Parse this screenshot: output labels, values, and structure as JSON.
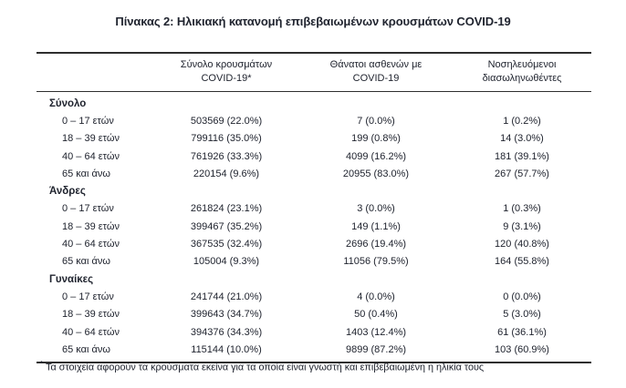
{
  "title": "Πίνακας 2: Ηλικιακή κατανομή επιβεβαιωμένων κρουσμάτων COVID-19",
  "table": {
    "columns": [
      {
        "line1": "Σύνολο κρουσμάτων",
        "line2": "COVID-19*"
      },
      {
        "line1": "Θάνατοι ασθενών με",
        "line2": "COVID-19"
      },
      {
        "line1": "Νοσηλευόμενοι",
        "line2": "διασωληνωθέντες"
      }
    ],
    "sections": [
      {
        "header": "Σύνολο",
        "rows": [
          {
            "label": "0 – 17 ετών",
            "cases": "503569 (22.0%)",
            "deaths": "7 (0.0%)",
            "intubated": "1 (0.2%)"
          },
          {
            "label": "18 – 39 ετών",
            "cases": "799116 (35.0%)",
            "deaths": "199 (0.8%)",
            "intubated": "14 (3.0%)"
          },
          {
            "label": "40 – 64 ετών",
            "cases": "761926 (33.3%)",
            "deaths": "4099 (16.2%)",
            "intubated": "181 (39.1%)"
          },
          {
            "label": "65 και άνω",
            "cases": "220154 (9.6%)",
            "deaths": "20955 (83.0%)",
            "intubated": "267 (57.7%)"
          }
        ]
      },
      {
        "header": "Άνδρες",
        "rows": [
          {
            "label": "0 – 17 ετών",
            "cases": "261824 (23.1%)",
            "deaths": "3 (0.0%)",
            "intubated": "1 (0.3%)"
          },
          {
            "label": "18 – 39 ετών",
            "cases": "399467 (35.2%)",
            "deaths": "149 (1.1%)",
            "intubated": "9 (3.1%)"
          },
          {
            "label": "40 – 64 ετών",
            "cases": "367535 (32.4%)",
            "deaths": "2696 (19.4%)",
            "intubated": "120 (40.8%)"
          },
          {
            "label": "65 και άνω",
            "cases": "105004 (9.3%)",
            "deaths": "11056 (79.5%)",
            "intubated": "164 (55.8%)"
          }
        ]
      },
      {
        "header": "Γυναίκες",
        "rows": [
          {
            "label": "0 – 17 ετών",
            "cases": "241744 (21.0%)",
            "deaths": "4 (0.0%)",
            "intubated": "0 (0.0%)"
          },
          {
            "label": "18 – 39 ετών",
            "cases": "399643 (34.7%)",
            "deaths": "50 (0.4%)",
            "intubated": "5 (3.0%)"
          },
          {
            "label": "40 – 64 ετών",
            "cases": "394376 (34.3%)",
            "deaths": "1403 (12.4%)",
            "intubated": "61 (36.1%)"
          },
          {
            "label": "65 και άνω",
            "cases": "115144 (10.0%)",
            "deaths": "9899 (87.2%)",
            "intubated": "103 (60.9%)"
          }
        ]
      }
    ]
  },
  "footnote": {
    "marker": "*",
    "text": "Τα στοιχεία αφορούν τα κρούσματα εκείνα για τα οποία είναι γνωστή και επιβεβαιωμένη η ηλικία τους"
  },
  "colors": {
    "text": "#20242f",
    "rule": "#2e2e2e",
    "background": "#ffffff"
  }
}
